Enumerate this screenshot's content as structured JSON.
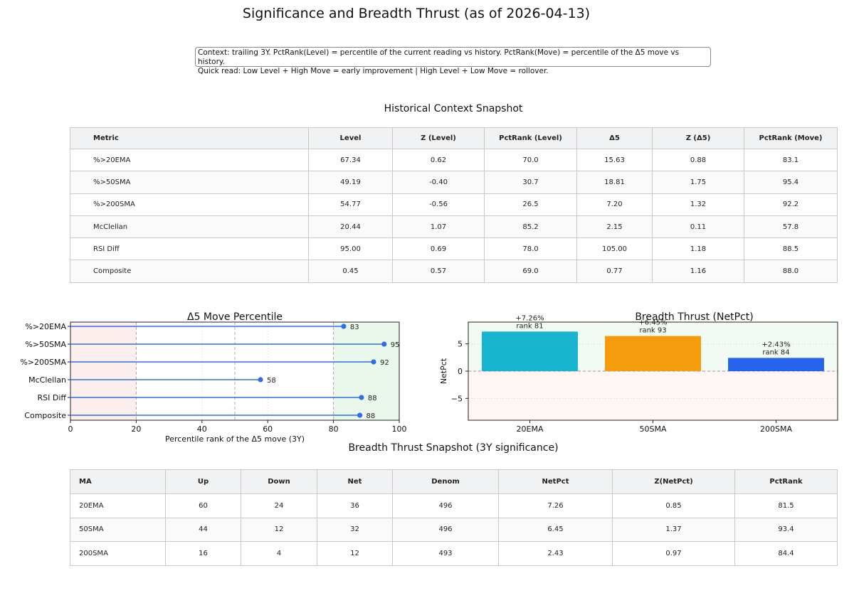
{
  "title": "Significance and Breadth Thrust (as of 2026-04-13)",
  "context": {
    "line1": "Context: trailing 3Y. PctRank(Level) = percentile of the current reading vs history. PctRank(Move) = percentile of the  Δ5 move vs history.",
    "line2": "Quick read: Low Level + High Move = early improvement | High Level + Low Move = rollover."
  },
  "historical_table": {
    "title": "Historical Context Snapshot",
    "headers": [
      "Metric",
      "Level",
      "Z (Level)",
      "PctRank (Level)",
      "Δ5",
      "Z (Δ5)",
      "PctRank (Move)"
    ],
    "rows": [
      [
        "%>20EMA",
        "67.34",
        "0.62",
        "70.0",
        "15.63",
        "0.88",
        "83.1"
      ],
      [
        "%>50SMA",
        "49.19",
        "-0.40",
        "30.7",
        "18.81",
        "1.75",
        "95.4"
      ],
      [
        "%>200SMA",
        "54.77",
        "-0.56",
        "26.5",
        "7.20",
        "1.32",
        "92.2"
      ],
      [
        "McClellan",
        "20.44",
        "1.07",
        "85.2",
        "2.15",
        "0.11",
        "57.8"
      ],
      [
        "RSI Diff",
        "95.00",
        "0.69",
        "78.0",
        "105.00",
        "1.18",
        "88.5"
      ],
      [
        "Composite",
        "0.45",
        "0.57",
        "69.0",
        "0.77",
        "1.16",
        "88.0"
      ]
    ]
  },
  "chart_data": [
    {
      "type": "lollipop",
      "title": "Δ5 Move Percentile",
      "xlabel": "Percentile rank of the Δ5 move (3Y)",
      "ylabel": "",
      "xlim": [
        0,
        100
      ],
      "xticks": [
        0,
        20,
        40,
        60,
        80,
        100
      ],
      "vlines": [
        20,
        50,
        80
      ],
      "bands": [
        {
          "from": 0,
          "to": 20,
          "color": "#fdeeee"
        },
        {
          "from": 80,
          "to": 100,
          "color": "#eaf8ec"
        }
      ],
      "categories": [
        "%>20EMA",
        "%>50SMA",
        "%>200SMA",
        "McClellan",
        "RSI Diff",
        "Composite"
      ],
      "values": [
        83.1,
        95.4,
        92.2,
        57.8,
        88.5,
        88.0
      ],
      "labels": [
        "83",
        "95",
        "92",
        "58",
        "88",
        "88"
      ],
      "color": "#2f6ee8",
      "grid": true
    },
    {
      "type": "bar",
      "title": "Breadth Thrust (NetPct)",
      "xlabel": "",
      "ylabel": "NetPct",
      "ylim": [
        -9,
        9
      ],
      "yticks": [
        -5,
        0,
        5
      ],
      "ytick_labels": [
        "−5",
        "0",
        "5"
      ],
      "categories": [
        "20EMA",
        "50SMA",
        "200SMA"
      ],
      "values": [
        7.26,
        6.45,
        2.43
      ],
      "annotations": [
        [
          "+7.26%",
          "rank 81"
        ],
        [
          "+6.45%",
          "rank 93"
        ],
        [
          "+2.43%",
          "rank 84"
        ]
      ],
      "colors": [
        "#17b3cf",
        "#f59c0c",
        "#2563eb"
      ],
      "positive_band_color": "#f2faf4",
      "negative_band_color": "#fef5f5",
      "grid": true
    }
  ],
  "thrust_table": {
    "title": "Breadth Thrust Snapshot (3Y significance)",
    "headers": [
      "MA",
      "Up",
      "Down",
      "Net",
      "Denom",
      "NetPct",
      "Z(NetPct)",
      "PctRank"
    ],
    "rows": [
      [
        "20EMA",
        "60",
        "24",
        "36",
        "496",
        "7.26",
        "0.85",
        "81.5"
      ],
      [
        "50SMA",
        "44",
        "12",
        "32",
        "496",
        "6.45",
        "1.37",
        "93.4"
      ],
      [
        "200SMA",
        "16",
        "4",
        "12",
        "493",
        "2.43",
        "0.97",
        "84.4"
      ]
    ]
  }
}
